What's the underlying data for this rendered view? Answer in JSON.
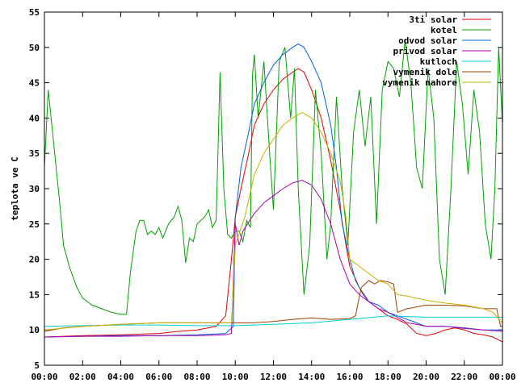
{
  "chart_data": {
    "type": "line",
    "title": "",
    "xlabel": "",
    "ylabel": "teplota ve C",
    "xlim": [
      "00:00",
      "24:00"
    ],
    "ylim": [
      5,
      55
    ],
    "x_ticks": [
      "00:00",
      "02:00",
      "04:00",
      "06:00",
      "08:00",
      "10:00",
      "12:00",
      "14:00",
      "16:00",
      "18:00",
      "20:00",
      "22:00",
      "00:00"
    ],
    "y_ticks": [
      "5",
      "10",
      "15",
      "20",
      "25",
      "30",
      "35",
      "40",
      "45",
      "50",
      "55"
    ],
    "grid": false,
    "legend_position": "top-right",
    "series": [
      {
        "name": "3ti solar",
        "color": "#e00000",
        "points": [
          [
            0,
            9.0
          ],
          [
            2,
            9.2
          ],
          [
            4,
            9.3
          ],
          [
            6,
            9.5
          ],
          [
            7,
            9.8
          ],
          [
            8,
            10.0
          ],
          [
            9,
            10.5
          ],
          [
            9.5,
            12.0
          ],
          [
            9.8,
            20.0
          ],
          [
            10.0,
            26.0
          ],
          [
            10.3,
            30.0
          ],
          [
            10.7,
            35.0
          ],
          [
            11.0,
            39.0
          ],
          [
            11.5,
            42.0
          ],
          [
            12.0,
            44.0
          ],
          [
            12.5,
            45.5
          ],
          [
            13.0,
            46.5
          ],
          [
            13.3,
            47.0
          ],
          [
            13.6,
            46.5
          ],
          [
            14.0,
            44.0
          ],
          [
            14.5,
            40.0
          ],
          [
            15.0,
            34.0
          ],
          [
            15.5,
            27.0
          ],
          [
            15.8,
            22.0
          ],
          [
            16.0,
            19.0
          ],
          [
            16.5,
            16.0
          ],
          [
            17.0,
            14.0
          ],
          [
            17.5,
            13.0
          ],
          [
            18.0,
            12.0
          ],
          [
            18.5,
            11.5
          ],
          [
            19.0,
            10.8
          ],
          [
            19.5,
            9.5
          ],
          [
            20.0,
            9.2
          ],
          [
            20.5,
            9.5
          ],
          [
            21.0,
            10.0
          ],
          [
            21.5,
            10.3
          ],
          [
            22.0,
            10.0
          ],
          [
            22.5,
            9.5
          ],
          [
            23.0,
            9.3
          ],
          [
            23.5,
            9.0
          ],
          [
            24,
            8.3
          ]
        ]
      },
      {
        "name": "kotel",
        "color": "#00a000",
        "points": [
          [
            0,
            33.0
          ],
          [
            0.2,
            44.0
          ],
          [
            0.5,
            36.0
          ],
          [
            0.8,
            28.0
          ],
          [
            1.0,
            22.0
          ],
          [
            1.3,
            19.0
          ],
          [
            1.7,
            16.0
          ],
          [
            2.0,
            14.5
          ],
          [
            2.5,
            13.5
          ],
          [
            3.0,
            13.0
          ],
          [
            3.5,
            12.5
          ],
          [
            4.0,
            12.2
          ],
          [
            4.3,
            12.2
          ],
          [
            4.5,
            18.0
          ],
          [
            4.8,
            24.0
          ],
          [
            5.0,
            25.5
          ],
          [
            5.2,
            25.5
          ],
          [
            5.4,
            23.5
          ],
          [
            5.6,
            24.0
          ],
          [
            5.8,
            23.5
          ],
          [
            6.0,
            24.5
          ],
          [
            6.2,
            23.0
          ],
          [
            6.5,
            25.0
          ],
          [
            6.8,
            26.0
          ],
          [
            7.0,
            27.5
          ],
          [
            7.2,
            25.5
          ],
          [
            7.4,
            19.5
          ],
          [
            7.6,
            23.0
          ],
          [
            7.8,
            22.5
          ],
          [
            8.0,
            25.0
          ],
          [
            8.2,
            25.5
          ],
          [
            8.4,
            26.0
          ],
          [
            8.6,
            27.0
          ],
          [
            8.8,
            24.5
          ],
          [
            9.0,
            25.5
          ],
          [
            9.2,
            46.5
          ],
          [
            9.4,
            30.0
          ],
          [
            9.6,
            23.5
          ],
          [
            9.8,
            23.0
          ],
          [
            10.0,
            24.0
          ],
          [
            10.2,
            24.0
          ],
          [
            10.4,
            22.5
          ],
          [
            10.6,
            25.5
          ],
          [
            10.8,
            24.5
          ],
          [
            10.9,
            46.0
          ],
          [
            11.0,
            49.0
          ],
          [
            11.2,
            40.0
          ],
          [
            11.5,
            48.0
          ],
          [
            11.8,
            35.0
          ],
          [
            12.0,
            27.0
          ],
          [
            12.3,
            48.0
          ],
          [
            12.6,
            50.0
          ],
          [
            12.9,
            40.0
          ],
          [
            13.1,
            47.0
          ],
          [
            13.3,
            30.0
          ],
          [
            13.6,
            15.0
          ],
          [
            13.9,
            22.0
          ],
          [
            14.2,
            44.0
          ],
          [
            14.5,
            35.0
          ],
          [
            14.8,
            20.0
          ],
          [
            15.0,
            25.0
          ],
          [
            15.3,
            43.0
          ],
          [
            15.6,
            30.0
          ],
          [
            15.9,
            22.0
          ],
          [
            16.2,
            38.0
          ],
          [
            16.5,
            44.0
          ],
          [
            16.8,
            36.0
          ],
          [
            17.1,
            43.0
          ],
          [
            17.4,
            25.0
          ],
          [
            17.7,
            44.0
          ],
          [
            18.0,
            48.0
          ],
          [
            18.3,
            47.0
          ],
          [
            18.6,
            43.0
          ],
          [
            18.9,
            51.0
          ],
          [
            19.2,
            45.0
          ],
          [
            19.5,
            33.0
          ],
          [
            19.8,
            30.0
          ],
          [
            20.1,
            47.0
          ],
          [
            20.4,
            40.0
          ],
          [
            20.7,
            20.0
          ],
          [
            21.0,
            15.0
          ],
          [
            21.3,
            30.0
          ],
          [
            21.6,
            48.0
          ],
          [
            21.9,
            42.0
          ],
          [
            22.2,
            32.0
          ],
          [
            22.5,
            44.0
          ],
          [
            22.8,
            38.0
          ],
          [
            23.1,
            25.0
          ],
          [
            23.4,
            20.0
          ],
          [
            23.6,
            30.0
          ],
          [
            23.8,
            50.0
          ],
          [
            24,
            39.0
          ]
        ]
      },
      {
        "name": "odvod solar",
        "color": "#0060e0",
        "points": [
          [
            0,
            9.0
          ],
          [
            2,
            9.1
          ],
          [
            4,
            9.2
          ],
          [
            6,
            9.2
          ],
          [
            8,
            9.3
          ],
          [
            9.5,
            9.5
          ],
          [
            9.9,
            10.5
          ],
          [
            10.0,
            26.0
          ],
          [
            10.3,
            33.0
          ],
          [
            10.7,
            38.0
          ],
          [
            11.0,
            42.0
          ],
          [
            11.5,
            45.0
          ],
          [
            12.0,
            47.5
          ],
          [
            12.5,
            49.0
          ],
          [
            13.0,
            50.0
          ],
          [
            13.3,
            50.5
          ],
          [
            13.6,
            50.0
          ],
          [
            14.0,
            48.0
          ],
          [
            14.5,
            45.0
          ],
          [
            15.0,
            39.0
          ],
          [
            15.3,
            33.0
          ],
          [
            15.6,
            25.0
          ],
          [
            16.0,
            20.0
          ],
          [
            16.3,
            17.0
          ],
          [
            16.7,
            15.0
          ],
          [
            17.0,
            14.0
          ],
          [
            17.5,
            13.5
          ],
          [
            18.0,
            12.5
          ],
          [
            18.5,
            12.0
          ],
          [
            19.0,
            11.5
          ],
          [
            19.5,
            11.0
          ],
          [
            20.0,
            10.5
          ],
          [
            21.0,
            10.5
          ],
          [
            22.0,
            10.3
          ],
          [
            23.0,
            10.0
          ],
          [
            24,
            10.0
          ]
        ]
      },
      {
        "name": "privod solar",
        "color": "#b000b0",
        "points": [
          [
            0,
            9.0
          ],
          [
            2,
            9.1
          ],
          [
            4,
            9.1
          ],
          [
            6,
            9.2
          ],
          [
            8,
            9.2
          ],
          [
            9.5,
            9.3
          ],
          [
            9.8,
            9.5
          ],
          [
            10.0,
            25.0
          ],
          [
            10.2,
            22.0
          ],
          [
            10.4,
            24.0
          ],
          [
            11.0,
            26.5
          ],
          [
            11.5,
            28.0
          ],
          [
            12.0,
            29.0
          ],
          [
            12.5,
            30.0
          ],
          [
            13.0,
            30.8
          ],
          [
            13.5,
            31.2
          ],
          [
            14.0,
            30.5
          ],
          [
            14.5,
            28.5
          ],
          [
            15.0,
            25.0
          ],
          [
            15.5,
            20.0
          ],
          [
            16.0,
            16.5
          ],
          [
            16.5,
            15.0
          ],
          [
            17.0,
            14.0
          ],
          [
            17.5,
            13.0
          ],
          [
            18.0,
            12.5
          ],
          [
            18.5,
            11.8
          ],
          [
            19.0,
            11.0
          ],
          [
            19.5,
            10.8
          ],
          [
            20.0,
            10.5
          ],
          [
            21.0,
            10.5
          ],
          [
            22.0,
            10.2
          ],
          [
            23.0,
            10.0
          ],
          [
            24,
            9.8
          ]
        ]
      },
      {
        "name": "kutloch",
        "color": "#00d0d0",
        "points": [
          [
            0,
            10.5
          ],
          [
            2,
            10.6
          ],
          [
            4,
            10.7
          ],
          [
            6,
            10.7
          ],
          [
            8,
            10.6
          ],
          [
            10,
            10.6
          ],
          [
            12,
            10.8
          ],
          [
            14,
            11.0
          ],
          [
            16,
            11.5
          ],
          [
            18,
            12.0
          ],
          [
            20,
            11.8
          ],
          [
            22,
            11.8
          ],
          [
            24,
            11.8
          ]
        ]
      },
      {
        "name": "vymenik dole",
        "color": "#a04000",
        "points": [
          [
            0,
            9.8
          ],
          [
            1,
            10.3
          ],
          [
            2,
            10.5
          ],
          [
            4,
            10.8
          ],
          [
            6,
            11.0
          ],
          [
            8,
            11.0
          ],
          [
            10,
            11.0
          ],
          [
            11,
            11.0
          ],
          [
            12,
            11.2
          ],
          [
            13,
            11.5
          ],
          [
            14,
            11.7
          ],
          [
            15,
            11.5
          ],
          [
            16,
            11.6
          ],
          [
            16.3,
            12.0
          ],
          [
            16.6,
            16.0
          ],
          [
            17.0,
            17.0
          ],
          [
            17.3,
            16.5
          ],
          [
            17.6,
            17.0
          ],
          [
            18.0,
            16.8
          ],
          [
            18.3,
            16.5
          ],
          [
            18.5,
            12.5
          ],
          [
            19.0,
            13.0
          ],
          [
            20.0,
            13.5
          ],
          [
            21.0,
            13.5
          ],
          [
            22.0,
            13.4
          ],
          [
            23.0,
            13.0
          ],
          [
            23.7,
            13.0
          ],
          [
            23.9,
            10.5
          ],
          [
            24,
            10.5
          ]
        ]
      },
      {
        "name": "vymenik nahore",
        "color": "#c8b000",
        "points": [
          [
            0,
            10.0
          ],
          [
            2,
            10.5
          ],
          [
            4,
            10.8
          ],
          [
            6,
            11.0
          ],
          [
            8,
            11.0
          ],
          [
            9.8,
            11.0
          ],
          [
            10.0,
            22.0
          ],
          [
            10.5,
            26.0
          ],
          [
            11.0,
            32.0
          ],
          [
            11.5,
            35.0
          ],
          [
            12.0,
            37.0
          ],
          [
            12.5,
            39.0
          ],
          [
            13.0,
            40.0
          ],
          [
            13.5,
            40.8
          ],
          [
            14.0,
            40.0
          ],
          [
            14.5,
            38.0
          ],
          [
            15.0,
            35.0
          ],
          [
            15.5,
            31.0
          ],
          [
            15.8,
            26.0
          ],
          [
            16.0,
            20.0
          ],
          [
            16.5,
            19.0
          ],
          [
            17.0,
            18.0
          ],
          [
            17.5,
            17.0
          ],
          [
            18.0,
            16.5
          ],
          [
            18.5,
            15.0
          ],
          [
            19.0,
            14.8
          ],
          [
            20.0,
            14.2
          ],
          [
            21.0,
            13.8
          ],
          [
            22.0,
            13.5
          ],
          [
            23.0,
            13.0
          ],
          [
            23.5,
            12.5
          ],
          [
            24,
            11.0
          ]
        ]
      }
    ]
  }
}
